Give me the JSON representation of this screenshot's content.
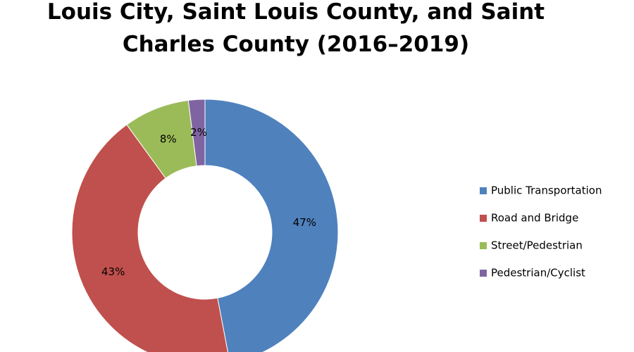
{
  "chart_data": {
    "type": "donut",
    "title": "Louis City, Saint Louis County, and Saint Charles County (2016–2019)",
    "categories": [
      "Public Transportation",
      "Road and Bridge",
      "Street/Pedestrian",
      "Pedestrian/Cyclist"
    ],
    "values": [
      47,
      43,
      8,
      2
    ],
    "value_labels": [
      "47%",
      "43%",
      "8%",
      "2%"
    ],
    "colors": [
      "#4f81bd",
      "#c0504d",
      "#9bbb59",
      "#8064a2"
    ],
    "legend": "right"
  }
}
